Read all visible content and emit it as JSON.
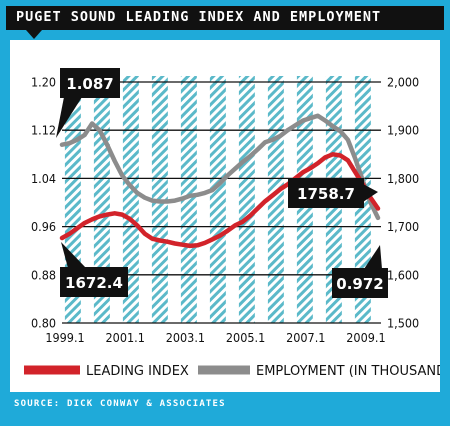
{
  "title": "PUGET SOUND LEADING INDEX AND EMPLOYMENT",
  "source": "SOURCE: DICK CONWAY & ASSOCIATES",
  "colors": {
    "frame": "#1faad9",
    "title_bar": "#111111",
    "leading_index": "#d2232a",
    "employment": "#8c8c8c",
    "stripes": "#5bb9c9",
    "callout_bg": "#111111"
  },
  "chart_data": {
    "type": "line",
    "title": "PUGET SOUND LEADING INDEX AND EMPLOYMENT",
    "x_ticks": [
      "1999.1",
      "2001.1",
      "2003.1",
      "2005.1",
      "2007.1",
      "2009.1"
    ],
    "x_range": [
      1999.0,
      2009.6
    ],
    "left_axis": {
      "ticks": [
        "1.20",
        "1.12",
        "1.04",
        "0.96",
        "0.88",
        "0.80"
      ],
      "range": [
        0.8,
        1.2
      ]
    },
    "right_axis": {
      "ticks": [
        "2,000",
        "1,900",
        "1,800",
        "1,700",
        "1,600",
        "1,500"
      ],
      "range": [
        1500,
        2000
      ]
    },
    "grid": "horizontal",
    "legend_position": "bottom",
    "series": [
      {
        "name": "LEADING INDEX",
        "axis": "left",
        "points": [
          [
            1999.0,
            0.941
          ],
          [
            1999.25,
            0.948
          ],
          [
            1999.5,
            0.957
          ],
          [
            1999.75,
            0.966
          ],
          [
            2000.0,
            0.972
          ],
          [
            2000.25,
            0.977
          ],
          [
            2000.5,
            0.98
          ],
          [
            2000.75,
            0.982
          ],
          [
            2001.0,
            0.98
          ],
          [
            2001.25,
            0.973
          ],
          [
            2001.5,
            0.962
          ],
          [
            2001.75,
            0.948
          ],
          [
            2002.0,
            0.94
          ],
          [
            2002.25,
            0.937
          ],
          [
            2002.5,
            0.935
          ],
          [
            2002.75,
            0.932
          ],
          [
            2003.0,
            0.93
          ],
          [
            2003.25,
            0.928
          ],
          [
            2003.5,
            0.929
          ],
          [
            2003.75,
            0.933
          ],
          [
            2004.0,
            0.939
          ],
          [
            2004.25,
            0.945
          ],
          [
            2004.5,
            0.953
          ],
          [
            2004.75,
            0.962
          ],
          [
            2005.0,
            0.968
          ],
          [
            2005.25,
            0.978
          ],
          [
            2005.5,
            0.99
          ],
          [
            2005.75,
            1.002
          ],
          [
            2006.0,
            1.012
          ],
          [
            2006.25,
            1.022
          ],
          [
            2006.5,
            1.03
          ],
          [
            2006.75,
            1.04
          ],
          [
            2007.0,
            1.05
          ],
          [
            2007.25,
            1.057
          ],
          [
            2007.5,
            1.065
          ],
          [
            2007.75,
            1.075
          ],
          [
            2008.0,
            1.08
          ],
          [
            2008.25,
            1.078
          ],
          [
            2008.5,
            1.07
          ],
          [
            2008.75,
            1.05
          ],
          [
            2009.0,
            1.03
          ],
          [
            2009.25,
            1.008
          ],
          [
            2009.5,
            0.99
          ]
        ]
      },
      {
        "name": "EMPLOYMENT (IN THOUSANDS)",
        "axis": "right",
        "points": [
          [
            1999.0,
            1870
          ],
          [
            1999.25,
            1873
          ],
          [
            1999.5,
            1880
          ],
          [
            1999.75,
            1890
          ],
          [
            2000.0,
            1914
          ],
          [
            2000.25,
            1900
          ],
          [
            2000.5,
            1870
          ],
          [
            2000.75,
            1836
          ],
          [
            2001.0,
            1806
          ],
          [
            2001.25,
            1786
          ],
          [
            2001.5,
            1770
          ],
          [
            2001.75,
            1760
          ],
          [
            2002.0,
            1754
          ],
          [
            2002.25,
            1752
          ],
          [
            2002.5,
            1752
          ],
          [
            2002.75,
            1754
          ],
          [
            2003.0,
            1758
          ],
          [
            2003.25,
            1764
          ],
          [
            2003.5,
            1766
          ],
          [
            2003.75,
            1770
          ],
          [
            2004.0,
            1776
          ],
          [
            2004.25,
            1790
          ],
          [
            2004.5,
            1806
          ],
          [
            2004.75,
            1820
          ],
          [
            2005.0,
            1834
          ],
          [
            2005.25,
            1846
          ],
          [
            2005.5,
            1860
          ],
          [
            2005.75,
            1875
          ],
          [
            2006.0,
            1880
          ],
          [
            2006.25,
            1888
          ],
          [
            2006.5,
            1900
          ],
          [
            2006.75,
            1910
          ],
          [
            2007.0,
            1920
          ],
          [
            2007.25,
            1925
          ],
          [
            2007.5,
            1930
          ],
          [
            2007.75,
            1920
          ],
          [
            2008.0,
            1908
          ],
          [
            2008.25,
            1898
          ],
          [
            2008.5,
            1880
          ],
          [
            2008.75,
            1840
          ],
          [
            2009.0,
            1795
          ],
          [
            2009.25,
            1750
          ],
          [
            2009.5,
            1718
          ]
        ]
      }
    ],
    "annotations": [
      {
        "text": "1.087"
      },
      {
        "text": "1758.7"
      },
      {
        "text": "1672.4"
      },
      {
        "text": "0.972"
      }
    ]
  }
}
